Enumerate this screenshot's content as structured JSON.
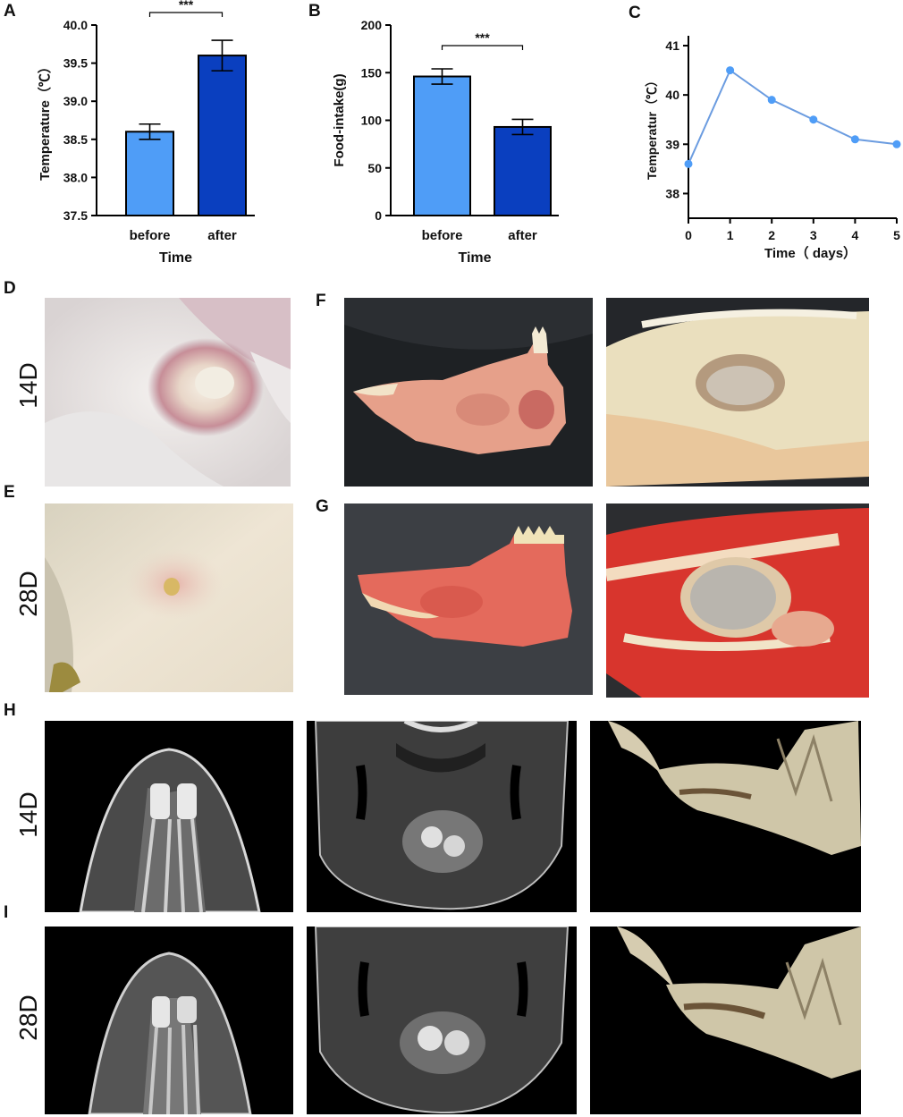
{
  "panels": {
    "A": "A",
    "B": "B",
    "C": "C",
    "D": "D",
    "E": "E",
    "F": "F",
    "G": "G",
    "H": "H",
    "I": "I"
  },
  "row_labels": {
    "d": "14D",
    "e": "28D",
    "h": "14D",
    "i": "28D"
  },
  "colors": {
    "before": "#4f9df7",
    "after": "#0a3fbf",
    "line": "#6b9ce0",
    "marker": "#4f9df7"
  },
  "chart_data": [
    {
      "panel": "A",
      "type": "bar",
      "categories": [
        "before",
        "after"
      ],
      "values": [
        38.6,
        39.6
      ],
      "errors": [
        0.1,
        0.2
      ],
      "xlabel": "Time",
      "ylabel": "Temperature（℃）",
      "ylim": [
        37.5,
        40.0
      ],
      "yticks": [
        "37.5",
        "38.0",
        "38.5",
        "39.0",
        "39.5",
        "40.0"
      ],
      "significance": "***"
    },
    {
      "panel": "B",
      "type": "bar",
      "categories": [
        "before",
        "after"
      ],
      "values": [
        146,
        93
      ],
      "errors": [
        8,
        8
      ],
      "xlabel": "Time",
      "ylabel": "Food-intake(g)",
      "ylim": [
        0,
        200
      ],
      "yticks": [
        "0",
        "50",
        "100",
        "150",
        "200"
      ],
      "significance": "***"
    },
    {
      "panel": "C",
      "type": "line",
      "x": [
        0,
        1,
        2,
        3,
        4,
        5
      ],
      "y": [
        38.6,
        40.5,
        39.9,
        39.5,
        39.1,
        39.0
      ],
      "xlabel": "Time（ days）",
      "ylabel": "Temperatur（℃）",
      "ylim": [
        37.5,
        41.2
      ],
      "xticks": [
        "0",
        "1",
        "2",
        "3",
        "4",
        "5"
      ],
      "yticks": [
        "38",
        "39",
        "40",
        "41"
      ]
    }
  ]
}
